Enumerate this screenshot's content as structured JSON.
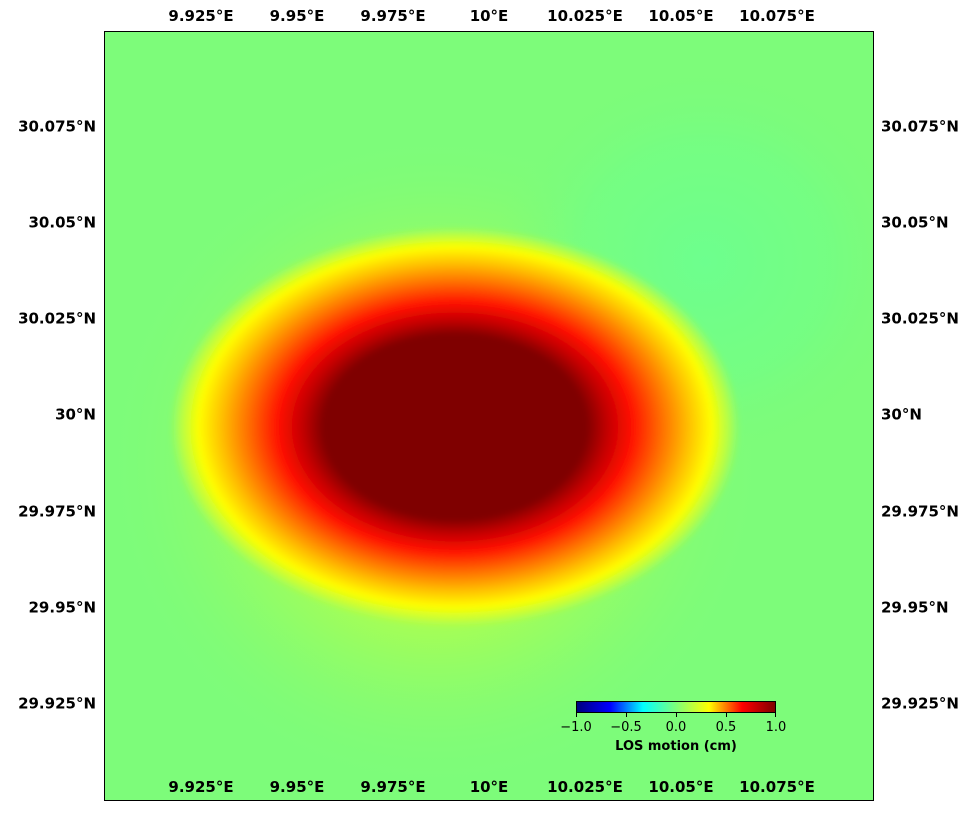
{
  "map": {
    "colormap": "jet",
    "background_color": "#7dfc7a",
    "lon_ticks": [
      "9.925°E",
      "9.95°E",
      "9.975°E",
      "10°E",
      "10.025°E",
      "10.05°E",
      "10.075°E"
    ],
    "lat_ticks": [
      "30.075°N",
      "30.05°N",
      "30.025°N",
      "30°N",
      "29.975°N",
      "29.95°N",
      "29.925°N"
    ]
  },
  "colorbar": {
    "label": "LOS motion (cm)",
    "ticks": [
      "−1.0",
      "−0.5",
      "0.0",
      "0.5",
      "1.0"
    ],
    "colors": [
      "#00007f",
      "#0000ff",
      "#00ffff",
      "#7dff7a",
      "#ffff00",
      "#ff0000",
      "#7f0000"
    ]
  }
}
